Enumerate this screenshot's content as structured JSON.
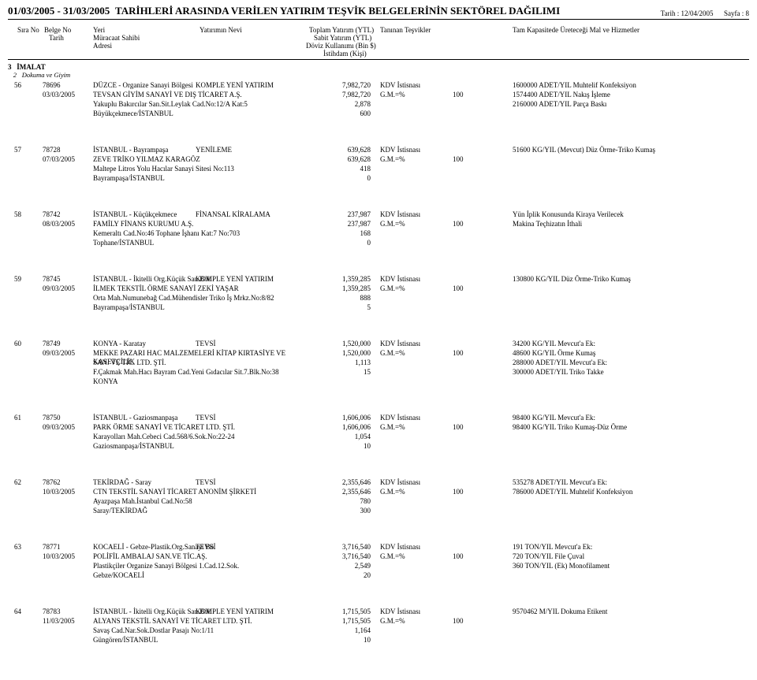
{
  "header": {
    "date_range": "01/03/2005  -  31/03/2005",
    "title_rest": "TARİHLERİ ARASINDA VERİLEN YATIRIM TEŞVİK BELGELERİNİN SEKTÖREL DAĞILIMI",
    "tarih_label": "Tarih :",
    "tarih_value": "12/04/2005",
    "sayfa_label": "Sayfa :",
    "sayfa_value": "8"
  },
  "cols": {
    "sira": "Sıra No",
    "belge": "Belge No",
    "tarih": "Tarih",
    "yeri": "Yeri",
    "muracaat": "Müracaat Sahibi",
    "adresi": "Adresi",
    "nevi": "Yatırımın Nevi",
    "toplam": "Toplam Yatırım (YTL)",
    "sabit": "Sabit Yatırım (YTL)",
    "doviz": "Döviz Kullanımı (Bin $)",
    "istihdam": "İstihdam (Kişi)",
    "tesvik": "Tanınan Teşvikler",
    "kapasite": "Tam Kapasitede Üreteceği Mal ve Hizmetler"
  },
  "section": {
    "main_no": "3",
    "main": "İMALAT",
    "sub_no": "2",
    "sub": "Dokuma ve Giyim"
  },
  "rows": [
    {
      "sira": "56",
      "belge": "78696",
      "tarih": "03/03/2005",
      "yeri": "DÜZCE - Organize Sanayi Bölgesi",
      "nevi": "KOMPLE YENİ YATIRIM",
      "muracaat": "TEVSAN GİYİM SANAYİ VE DIŞ TİCARET A.Ş.",
      "adres1": "Yakuplu Bakırcılar San.Sit.Leylak Cad.No:12/A Kat:5",
      "adres2": "Büyükçekmece/İSTANBUL",
      "v1": "7,982,720",
      "v2": "7,982,720",
      "v3": "2,878",
      "v4": "600",
      "t1": "KDV İstisnası",
      "t2": "G.M.=%",
      "t2v": "100",
      "k1": "1600000 ADET/YIL Muhtelif Konfeksiyon",
      "k2": "1574400 ADET/YIL Nakış İşleme",
      "k3": "2160000 ADET/YIL Parça Baskı"
    },
    {
      "sira": "57",
      "belge": "78728",
      "tarih": "07/03/2005",
      "yeri": "İSTANBUL - Bayrampaşa",
      "nevi": "YENİLEME",
      "muracaat": "ZEVE TRİKO YILMAZ KARAGÖZ",
      "adres1": "Maltepe Litros Yolu Hacılar Sanayi Sitesi No:113",
      "adres2": "Bayrampaşa/İSTANBUL",
      "v1": "639,628",
      "v2": "639,628",
      "v3": "418",
      "v4": "0",
      "t1": "KDV İstisnası",
      "t2": "G.M.=%",
      "t2v": "100",
      "k1": "51600 KG/YIL (Mevcut) Düz Örme-Triko Kumaş"
    },
    {
      "sira": "58",
      "belge": "78742",
      "tarih": "08/03/2005",
      "yeri": "İSTANBUL - Küçükçekmece",
      "nevi": "FİNANSAL KİRALAMA",
      "muracaat": "FAMİLY FİNANS KURUMU A.Ş.",
      "adres1": "Kemeraltı Cad.No:46 Tophane İşhanı Kat:7 No:703",
      "adres2": "Tophane/İSTANBUL",
      "v1": "237,987",
      "v2": "237,987",
      "v3": "168",
      "v4": "0",
      "t1": "KDV İstisnası",
      "t2": "G.M.=%",
      "t2v": "100",
      "k1": "Yün İplik Konusunda Kiraya Verilecek",
      "k2": "Makina Teçhizatın İthali"
    },
    {
      "sira": "59",
      "belge": "78745",
      "tarih": "09/03/2005",
      "yeri": "İSTANBUL - İkitelli Org.Küçük San.Böl.",
      "nevi": "KOMPLE YENİ YATIRIM",
      "muracaat": "İLMEK TEKSTİL ÖRME SANAYİ ZEKİ YAŞAR",
      "adres1": "Orta Mah.Numunebağ Cad.Mühendisler Triko İş Mrkz.No:8/82",
      "adres2": "Bayrampaşa/İSTANBUL",
      "v1": "1,359,285",
      "v2": "1,359,285",
      "v3": "888",
      "v4": "5",
      "t1": "KDV İstisnası",
      "t2": "G.M.=%",
      "t2v": "100",
      "k1": "130800 KG/YIL Düz Örme-Triko Kumaş"
    },
    {
      "sira": "60",
      "belge": "78749",
      "tarih": "09/03/2005",
      "yeri": "KONYA - Karatay",
      "nevi": "TEVSİ",
      "muracaat": "MEKKE PAZARI HAC MALZEMELERİ KİTAP KIRTASİYE VE KASETÇİLİK",
      "muracaat2": "SAN. VE TİC. LTD. ŞTİ.",
      "adres1": "F.Çakmak Mah.Hacı Bayram Cad.Yeni Gıdacılar Sit.7.Blk.No:38",
      "adres2": "KONYA",
      "v1": "1,520,000",
      "v2": "1,520,000",
      "v3": "1,113",
      "v4": "15",
      "t1": "KDV İstisnası",
      "t2": "G.M.=%",
      "t2v": "100",
      "k1": "34200 KG/YIL Mevcut'a Ek:",
      "k2": "48600 KG/YIL Örme Kumaş",
      "k3": "288000 ADET/YIL Mevcut'a Ek:",
      "k4": "300000 ADET/YIL Triko Takke"
    },
    {
      "sira": "61",
      "belge": "78750",
      "tarih": "09/03/2005",
      "yeri": "İSTANBUL - Gaziosmanpaşa",
      "nevi": "TEVSİ",
      "muracaat": "PARK ÖRME SANAYİ VE TİCARET LTD. ŞTİ.",
      "adres1": "Karayolları Mah.Cebeci Cad.568/6.Sok.No:22-24",
      "adres2": "Gaziosmanpaşa/İSTANBUL",
      "v1": "1,606,006",
      "v2": "1,606,006",
      "v3": "1,054",
      "v4": "10",
      "t1": "KDV İstisnası",
      "t2": "G.M.=%",
      "t2v": "100",
      "k1": "98400 KG/YIL Mevcut'a Ek:",
      "k2": "98400 KG/YIL Triko Kumaş-Düz Örme"
    },
    {
      "sira": "62",
      "belge": "78762",
      "tarih": "10/03/2005",
      "yeri": "TEKİRDAĞ - Saray",
      "nevi": "TEVSİ",
      "muracaat": "CTN TEKSTİL SANAYİ TİCARET ANONİM ŞİRKETİ",
      "adres1": "Ayazpaşa Mah.İstanbul Cad.No:58",
      "adres2": "Saray/TEKİRDAĞ",
      "v1": "2,355,646",
      "v2": "2,355,646",
      "v3": "780",
      "v4": "300",
      "t1": "KDV İstisnası",
      "t2": "G.M.=%",
      "t2v": "100",
      "k1": "535278 ADET/YIL Mevcut'a Ek:",
      "k2": "786000 ADET/YIL Muhtelif Konfeksiyon"
    },
    {
      "sira": "63",
      "belge": "78771",
      "tarih": "10/03/2005",
      "yeri": "KOCAELİ - Gebze-Plastik.Org.Sanayi Bö.",
      "nevi": "TEVSİ",
      "muracaat": "POLİFİL AMBALAJ SAN.VE TİC.AŞ.",
      "adres1": "Plastikçiler Organize Sanayi Bölgesi 1.Cad.12.Sok.",
      "adres2": "Gebze/KOCAELİ",
      "v1": "3,716,540",
      "v2": "3,716,540",
      "v3": "2,549",
      "v4": "20",
      "t1": "KDV İstisnası",
      "t2": "G.M.=%",
      "t2v": "100",
      "k1": "191 TON/YIL Mevcut'a Ek:",
      "k2": "720 TON/YIL File Çuval",
      "k3": "360 TON/YIL (Ek) Monofilament"
    },
    {
      "sira": "64",
      "belge": "78783",
      "tarih": "11/03/2005",
      "yeri": "İSTANBUL - İkitelli Org.Küçük San.Böl.",
      "nevi": "KOMPLE YENİ YATIRIM",
      "muracaat": "ALYANS TEKSTİL SANAYİ VE TİCARET LTD. ŞTİ.",
      "adres1": "Savaş Cad.Nar.Sok.Dostlar Pasajı No:1/11",
      "adres2": "Güngören/İSTANBUL",
      "v1": "1,715,505",
      "v2": "1,715,505",
      "v3": "1,164",
      "v4": "10",
      "t1": "KDV İstisnası",
      "t2": "G.M.=%",
      "t2v": "100",
      "k1": "9570462 M/YIL Dokuma Etikent"
    }
  ]
}
